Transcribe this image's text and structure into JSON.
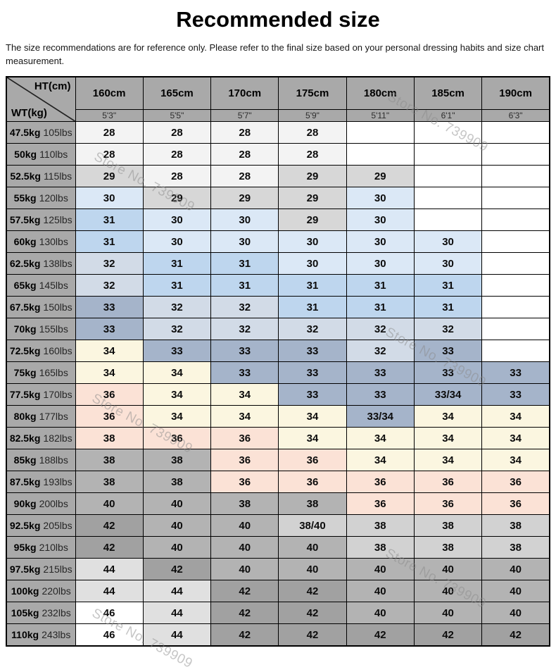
{
  "page": {
    "title": "Recommended size",
    "disclaimer": "The size recommendations are for reference only. Please refer to the final size based on your personal dressing habits and size chart measurement."
  },
  "watermark": {
    "text": "Store No. 739909"
  },
  "colors": {
    "header_bg": "#a9a9a9",
    "near_white": "#f3f3f3",
    "light_gray": "#d7d7d7",
    "pale_blue": "#dbe8f6",
    "blue": "#bed6ee",
    "pale_blue_gray": "#d2dbe7",
    "blue_gray": "#a5b4ca",
    "cream": "#fbf6e0",
    "pink": "#fbe2d6",
    "mid_gray": "#b3b3b3",
    "dark_gray": "#a1a1a1",
    "lighter_gray": "#d2d2d2",
    "xlight_gray": "#e0e0e0",
    "white": "#ffffff"
  },
  "chart_data": {
    "type": "table",
    "title": "Recommended size",
    "corner": {
      "top_right": "HT(cm)",
      "bottom_left": "WT(kg)"
    },
    "columns": [
      {
        "cm": "160cm",
        "ft": "5'3\""
      },
      {
        "cm": "165cm",
        "ft": "5'5\""
      },
      {
        "cm": "170cm",
        "ft": "5'7\""
      },
      {
        "cm": "175cm",
        "ft": "5'9\""
      },
      {
        "cm": "180cm",
        "ft": "5'11\""
      },
      {
        "cm": "185cm",
        "ft": "6'1\""
      },
      {
        "cm": "190cm",
        "ft": "6'3\""
      }
    ],
    "rows": [
      {
        "kg": "47.5kg",
        "lbs": "105lbs",
        "cells": [
          {
            "v": "28",
            "c": "p0"
          },
          {
            "v": "28",
            "c": "p0"
          },
          {
            "v": "28",
            "c": "p0"
          },
          {
            "v": "28",
            "c": "p0"
          },
          {
            "v": "",
            "c": "p12"
          },
          {
            "v": "",
            "c": "p12"
          },
          {
            "v": "",
            "c": "p12"
          }
        ]
      },
      {
        "kg": "50kg",
        "lbs": "110lbs",
        "cells": [
          {
            "v": "28",
            "c": "p0"
          },
          {
            "v": "28",
            "c": "p0"
          },
          {
            "v": "28",
            "c": "p0"
          },
          {
            "v": "28",
            "c": "p0"
          },
          {
            "v": "",
            "c": "p12"
          },
          {
            "v": "",
            "c": "p12"
          },
          {
            "v": "",
            "c": "p12"
          }
        ]
      },
      {
        "kg": "52.5kg",
        "lbs": "115lbs",
        "cells": [
          {
            "v": "29",
            "c": "p1"
          },
          {
            "v": "28",
            "c": "p0"
          },
          {
            "v": "28",
            "c": "p0"
          },
          {
            "v": "29",
            "c": "p1"
          },
          {
            "v": "29",
            "c": "p1"
          },
          {
            "v": "",
            "c": "p12"
          },
          {
            "v": "",
            "c": "p12"
          }
        ]
      },
      {
        "kg": "55kg",
        "lbs": "120lbs",
        "cells": [
          {
            "v": "30",
            "c": "p2"
          },
          {
            "v": "29",
            "c": "p1"
          },
          {
            "v": "29",
            "c": "p1"
          },
          {
            "v": "29",
            "c": "p1"
          },
          {
            "v": "30",
            "c": "p2"
          },
          {
            "v": "",
            "c": "p12"
          },
          {
            "v": "",
            "c": "p12"
          }
        ]
      },
      {
        "kg": "57.5kg",
        "lbs": "125lbs",
        "cells": [
          {
            "v": "31",
            "c": "p3"
          },
          {
            "v": "30",
            "c": "p2"
          },
          {
            "v": "30",
            "c": "p2"
          },
          {
            "v": "29",
            "c": "p1"
          },
          {
            "v": "30",
            "c": "p2"
          },
          {
            "v": "",
            "c": "p12"
          },
          {
            "v": "",
            "c": "p12"
          }
        ]
      },
      {
        "kg": "60kg",
        "lbs": "130lbs",
        "cells": [
          {
            "v": "31",
            "c": "p3"
          },
          {
            "v": "30",
            "c": "p2"
          },
          {
            "v": "30",
            "c": "p2"
          },
          {
            "v": "30",
            "c": "p2"
          },
          {
            "v": "30",
            "c": "p2"
          },
          {
            "v": "30",
            "c": "p2"
          },
          {
            "v": "",
            "c": "p12"
          }
        ]
      },
      {
        "kg": "62.5kg",
        "lbs": "138lbs",
        "cells": [
          {
            "v": "32",
            "c": "p4"
          },
          {
            "v": "31",
            "c": "p3"
          },
          {
            "v": "31",
            "c": "p3"
          },
          {
            "v": "30",
            "c": "p2"
          },
          {
            "v": "30",
            "c": "p2"
          },
          {
            "v": "30",
            "c": "p2"
          },
          {
            "v": "",
            "c": "p12"
          }
        ]
      },
      {
        "kg": "65kg",
        "lbs": "145lbs",
        "cells": [
          {
            "v": "32",
            "c": "p4"
          },
          {
            "v": "31",
            "c": "p3"
          },
          {
            "v": "31",
            "c": "p3"
          },
          {
            "v": "31",
            "c": "p3"
          },
          {
            "v": "31",
            "c": "p3"
          },
          {
            "v": "31",
            "c": "p3"
          },
          {
            "v": "",
            "c": "p12"
          }
        ]
      },
      {
        "kg": "67.5kg",
        "lbs": "150lbs",
        "cells": [
          {
            "v": "33",
            "c": "p5"
          },
          {
            "v": "32",
            "c": "p4"
          },
          {
            "v": "32",
            "c": "p4"
          },
          {
            "v": "31",
            "c": "p3"
          },
          {
            "v": "31",
            "c": "p3"
          },
          {
            "v": "31",
            "c": "p3"
          },
          {
            "v": "",
            "c": "p12"
          }
        ]
      },
      {
        "kg": "70kg",
        "lbs": "155lbs",
        "cells": [
          {
            "v": "33",
            "c": "p5"
          },
          {
            "v": "32",
            "c": "p4"
          },
          {
            "v": "32",
            "c": "p4"
          },
          {
            "v": "32",
            "c": "p4"
          },
          {
            "v": "32",
            "c": "p4"
          },
          {
            "v": "32",
            "c": "p4"
          },
          {
            "v": "",
            "c": "p12"
          }
        ]
      },
      {
        "kg": "72.5kg",
        "lbs": "160lbs",
        "cells": [
          {
            "v": "34",
            "c": "p6"
          },
          {
            "v": "33",
            "c": "p5"
          },
          {
            "v": "33",
            "c": "p5"
          },
          {
            "v": "33",
            "c": "p5"
          },
          {
            "v": "32",
            "c": "p4"
          },
          {
            "v": "33",
            "c": "p5"
          },
          {
            "v": "",
            "c": "p12"
          }
        ]
      },
      {
        "kg": "75kg",
        "lbs": "165lbs",
        "cells": [
          {
            "v": "34",
            "c": "p6"
          },
          {
            "v": "34",
            "c": "p6"
          },
          {
            "v": "33",
            "c": "p5"
          },
          {
            "v": "33",
            "c": "p5"
          },
          {
            "v": "33",
            "c": "p5"
          },
          {
            "v": "33",
            "c": "p5"
          },
          {
            "v": "33",
            "c": "p5"
          }
        ]
      },
      {
        "kg": "77.5kg",
        "lbs": "170lbs",
        "cells": [
          {
            "v": "36",
            "c": "p7"
          },
          {
            "v": "34",
            "c": "p6"
          },
          {
            "v": "34",
            "c": "p6"
          },
          {
            "v": "33",
            "c": "p5"
          },
          {
            "v": "33",
            "c": "p5"
          },
          {
            "v": "33/34",
            "c": "p5"
          },
          {
            "v": "33",
            "c": "p5"
          }
        ]
      },
      {
        "kg": "80kg",
        "lbs": "177lbs",
        "cells": [
          {
            "v": "36",
            "c": "p7"
          },
          {
            "v": "34",
            "c": "p6"
          },
          {
            "v": "34",
            "c": "p6"
          },
          {
            "v": "34",
            "c": "p6"
          },
          {
            "v": "33/34",
            "c": "p5"
          },
          {
            "v": "34",
            "c": "p6"
          },
          {
            "v": "34",
            "c": "p6"
          }
        ]
      },
      {
        "kg": "82.5kg",
        "lbs": "182lbs",
        "cells": [
          {
            "v": "38",
            "c": "p7"
          },
          {
            "v": "36",
            "c": "p7"
          },
          {
            "v": "36",
            "c": "p7"
          },
          {
            "v": "34",
            "c": "p6"
          },
          {
            "v": "34",
            "c": "p6"
          },
          {
            "v": "34",
            "c": "p6"
          },
          {
            "v": "34",
            "c": "p6"
          }
        ]
      },
      {
        "kg": "85kg",
        "lbs": "188lbs",
        "cells": [
          {
            "v": "38",
            "c": "p8"
          },
          {
            "v": "38",
            "c": "p8"
          },
          {
            "v": "36",
            "c": "p7"
          },
          {
            "v": "36",
            "c": "p7"
          },
          {
            "v": "34",
            "c": "p6"
          },
          {
            "v": "34",
            "c": "p6"
          },
          {
            "v": "34",
            "c": "p6"
          }
        ]
      },
      {
        "kg": "87.5kg",
        "lbs": "193lbs",
        "cells": [
          {
            "v": "38",
            "c": "p8"
          },
          {
            "v": "38",
            "c": "p8"
          },
          {
            "v": "36",
            "c": "p7"
          },
          {
            "v": "36",
            "c": "p7"
          },
          {
            "v": "36",
            "c": "p7"
          },
          {
            "v": "36",
            "c": "p7"
          },
          {
            "v": "36",
            "c": "p7"
          }
        ]
      },
      {
        "kg": "90kg",
        "lbs": "200lbs",
        "cells": [
          {
            "v": "40",
            "c": "p8"
          },
          {
            "v": "40",
            "c": "p8"
          },
          {
            "v": "38",
            "c": "p8"
          },
          {
            "v": "38",
            "c": "p8"
          },
          {
            "v": "36",
            "c": "p7"
          },
          {
            "v": "36",
            "c": "p7"
          },
          {
            "v": "36",
            "c": "p7"
          }
        ]
      },
      {
        "kg": "92.5kg",
        "lbs": "205lbs",
        "cells": [
          {
            "v": "42",
            "c": "p9"
          },
          {
            "v": "40",
            "c": "p8"
          },
          {
            "v": "40",
            "c": "p8"
          },
          {
            "v": "38/40",
            "c": "p10"
          },
          {
            "v": "38",
            "c": "p10"
          },
          {
            "v": "38",
            "c": "p10"
          },
          {
            "v": "38",
            "c": "p10"
          }
        ]
      },
      {
        "kg": "95kg",
        "lbs": "210lbs",
        "cells": [
          {
            "v": "42",
            "c": "p9"
          },
          {
            "v": "40",
            "c": "p8"
          },
          {
            "v": "40",
            "c": "p8"
          },
          {
            "v": "40",
            "c": "p8"
          },
          {
            "v": "38",
            "c": "p10"
          },
          {
            "v": "38",
            "c": "p10"
          },
          {
            "v": "38",
            "c": "p10"
          }
        ]
      },
      {
        "kg": "97.5kg",
        "lbs": "215lbs",
        "cells": [
          {
            "v": "44",
            "c": "p11"
          },
          {
            "v": "42",
            "c": "p9"
          },
          {
            "v": "40",
            "c": "p8"
          },
          {
            "v": "40",
            "c": "p8"
          },
          {
            "v": "40",
            "c": "p8"
          },
          {
            "v": "40",
            "c": "p8"
          },
          {
            "v": "40",
            "c": "p8"
          }
        ]
      },
      {
        "kg": "100kg",
        "lbs": "220lbs",
        "cells": [
          {
            "v": "44",
            "c": "p11"
          },
          {
            "v": "44",
            "c": "p11"
          },
          {
            "v": "42",
            "c": "p9"
          },
          {
            "v": "42",
            "c": "p9"
          },
          {
            "v": "40",
            "c": "p8"
          },
          {
            "v": "40",
            "c": "p8"
          },
          {
            "v": "40",
            "c": "p8"
          }
        ]
      },
      {
        "kg": "105kg",
        "lbs": "232lbs",
        "cells": [
          {
            "v": "46",
            "c": "p12"
          },
          {
            "v": "44",
            "c": "p11"
          },
          {
            "v": "42",
            "c": "p9"
          },
          {
            "v": "42",
            "c": "p9"
          },
          {
            "v": "40",
            "c": "p8"
          },
          {
            "v": "40",
            "c": "p8"
          },
          {
            "v": "40",
            "c": "p8"
          }
        ]
      },
      {
        "kg": "110kg",
        "lbs": "243lbs",
        "cells": [
          {
            "v": "46",
            "c": "p12"
          },
          {
            "v": "44",
            "c": "p11"
          },
          {
            "v": "42",
            "c": "p9"
          },
          {
            "v": "42",
            "c": "p9"
          },
          {
            "v": "42",
            "c": "p9"
          },
          {
            "v": "42",
            "c": "p9"
          },
          {
            "v": "42",
            "c": "p9"
          }
        ]
      }
    ]
  }
}
